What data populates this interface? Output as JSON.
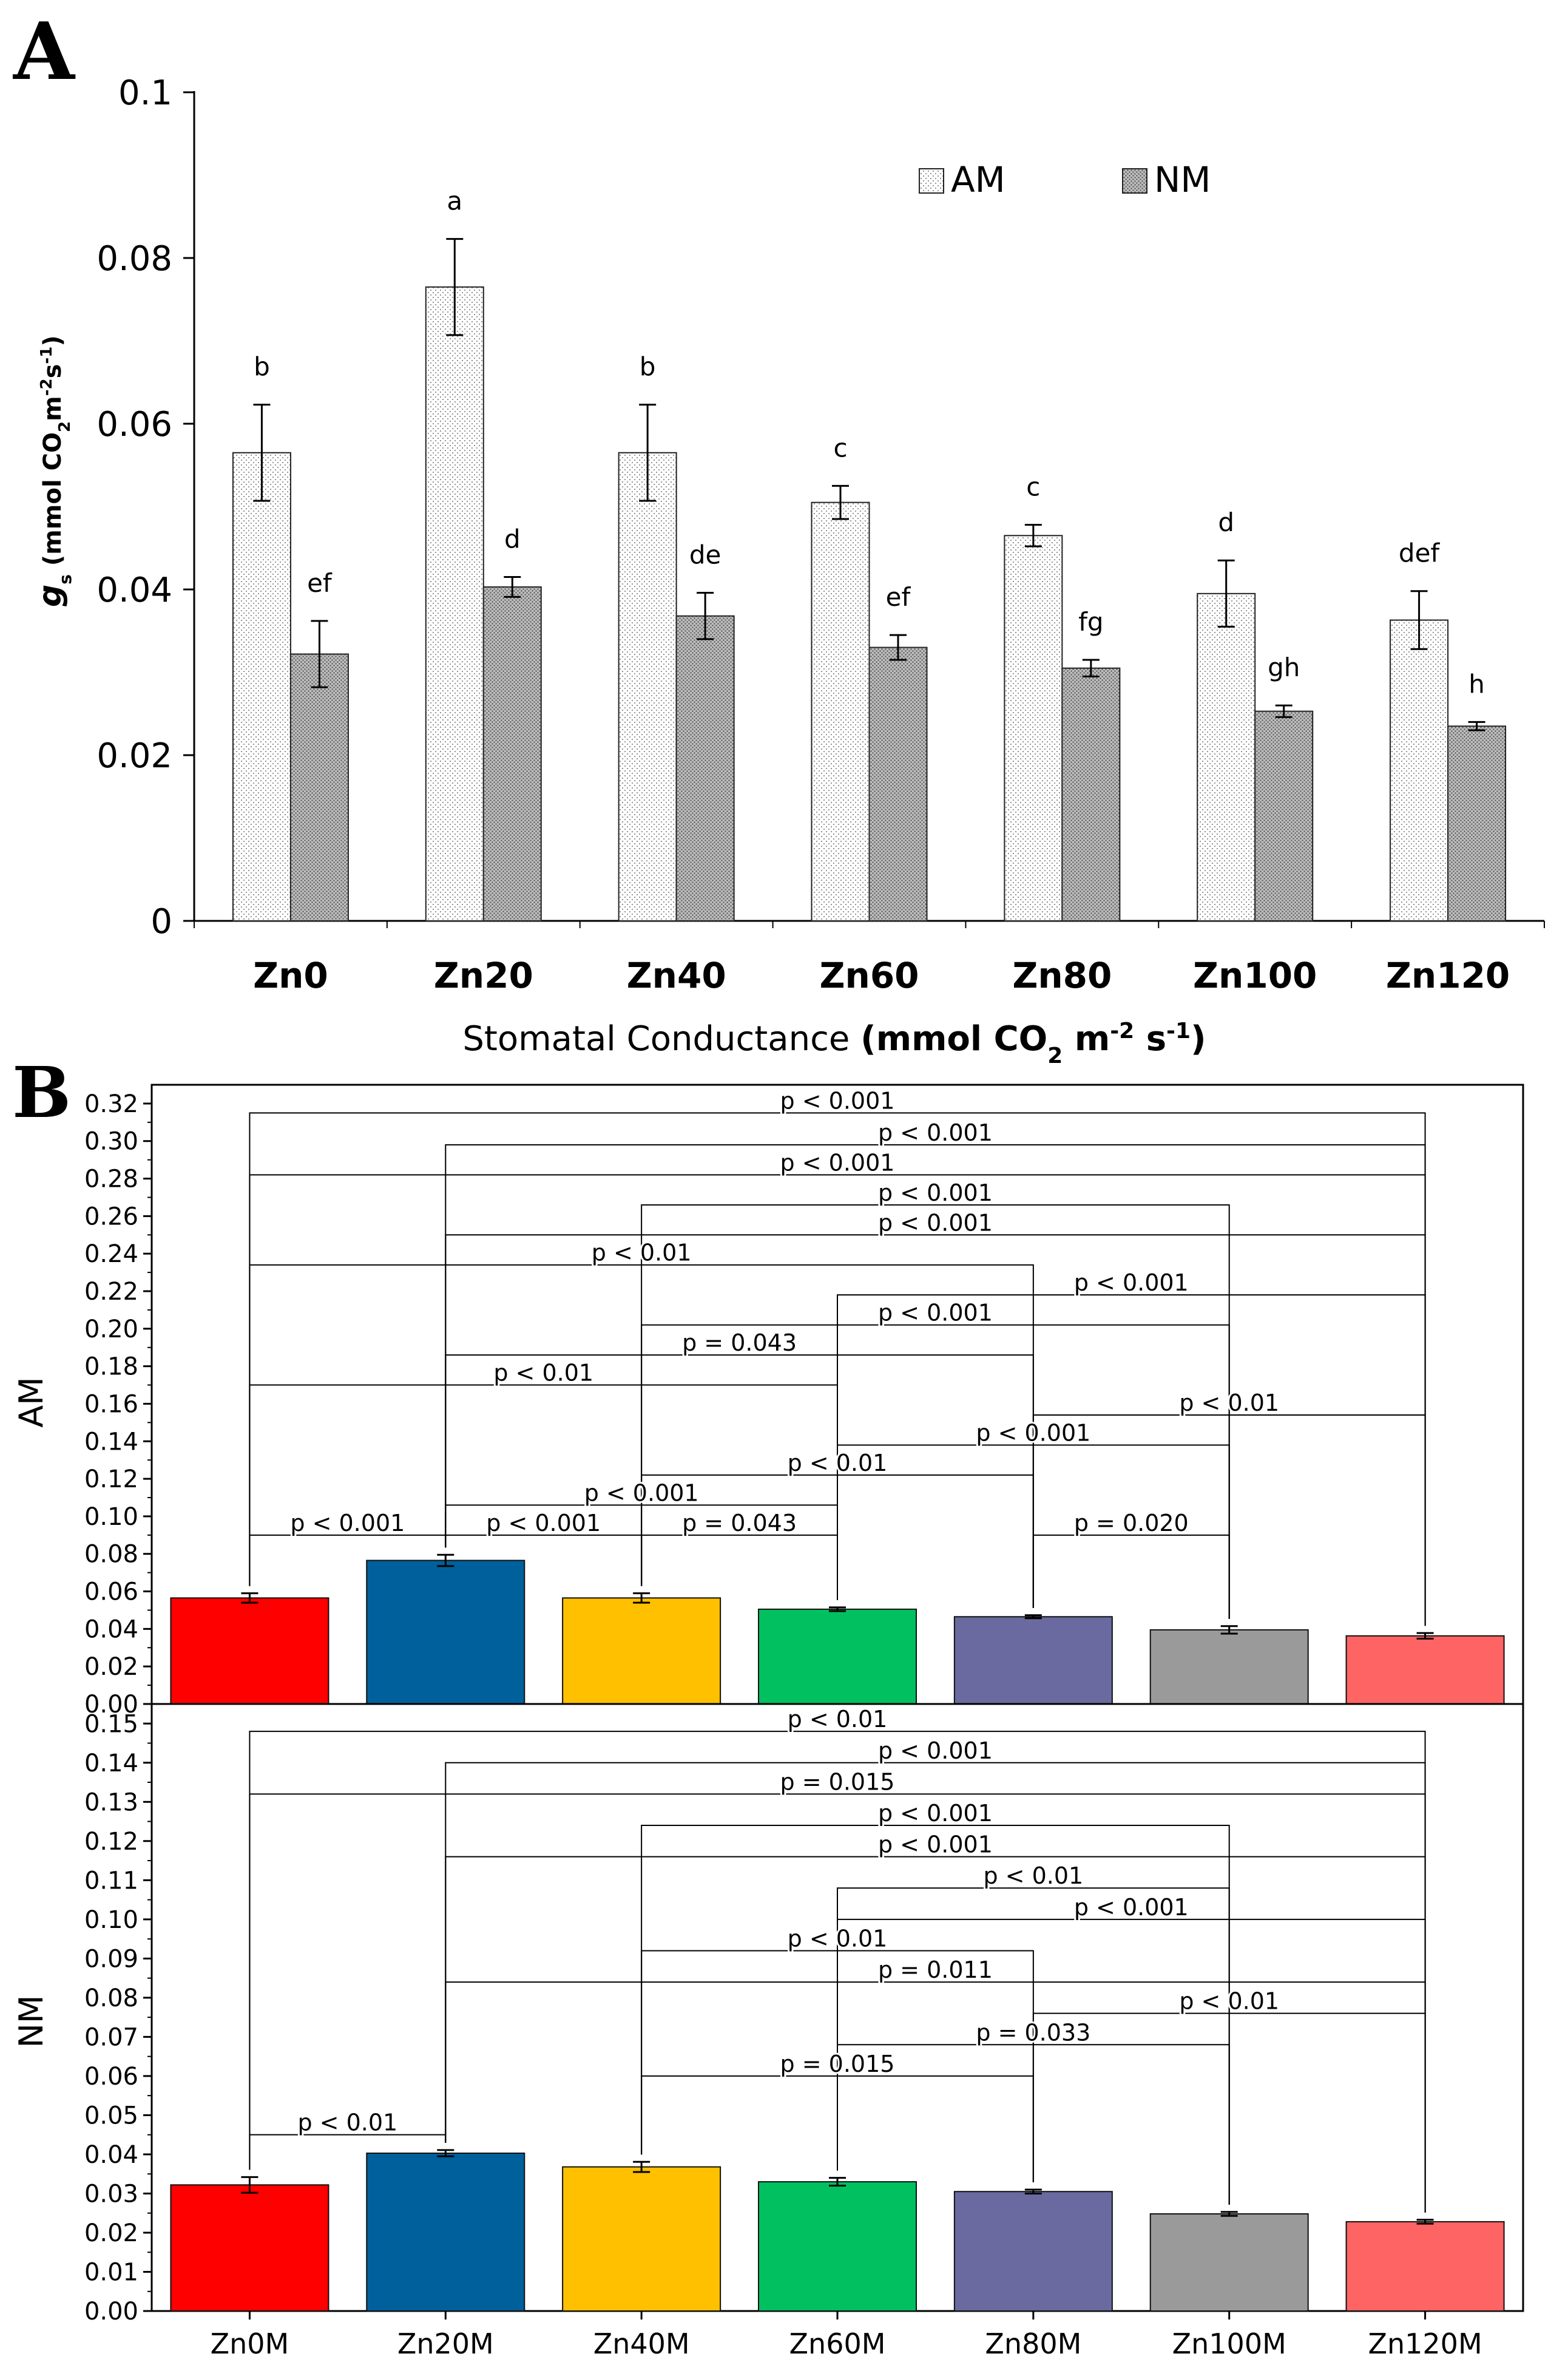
{
  "chart_data": [
    {
      "panel": "A",
      "type": "bar",
      "ylabel_main": "g",
      "ylabel_sub": "s",
      "ylabel_rest": " (mmol CO",
      "ylabel_sub2": "2",
      "ylabel_tail": "m",
      "ylabel_sup1": "-2",
      "ylabel_s": "s",
      "ylabel_sup2": "-1",
      "ylabel_close": ")",
      "xlabel_plain": "Stomatal Conductance ",
      "xlabel_bold": "(mmol CO",
      "xlabel_sub": "2",
      "xlabel_m": " m",
      "xlabel_sup1": "-2",
      "xlabel_s": " s",
      "xlabel_sup2": "-1",
      "xlabel_close": ")",
      "ylim": [
        0,
        0.1
      ],
      "yticks": [
        0,
        0.02,
        0.04,
        0.06,
        0.08,
        0.1
      ],
      "ytick_labels": [
        "0",
        "0.02",
        "0.04",
        "0.06",
        "0.08",
        "0.1"
      ],
      "categories": [
        "Zn0",
        "Zn20",
        "Zn40",
        "Zn60",
        "Zn80",
        "Zn100",
        "Zn120"
      ],
      "legend_position": "top-right",
      "series": [
        {
          "name": "AM",
          "values": [
            0.0565,
            0.0765,
            0.0565,
            0.0505,
            0.0465,
            0.0395,
            0.0363
          ],
          "errors": [
            0.0058,
            0.0058,
            0.0058,
            0.002,
            0.0013,
            0.004,
            0.0035
          ],
          "letters": [
            "b",
            "a",
            "b",
            "c",
            "c",
            "d",
            "def"
          ]
        },
        {
          "name": "NM",
          "values": [
            0.0322,
            0.0403,
            0.0368,
            0.033,
            0.0305,
            0.0253,
            0.0235
          ],
          "errors": [
            0.004,
            0.0012,
            0.0028,
            0.0015,
            0.001,
            0.0007,
            0.0005
          ],
          "letters": [
            "ef",
            "d",
            "de",
            "ef",
            "fg",
            "gh",
            "h"
          ]
        }
      ]
    },
    {
      "panel": "B",
      "type": "bar",
      "categories": [
        "Zn0M",
        "Zn20M",
        "Zn40M",
        "Zn60M",
        "Zn80M",
        "Zn100M",
        "Zn120M"
      ],
      "colors": [
        "#ff0000",
        "#00609c",
        "#ffc000",
        "#00c060",
        "#6a6aa0",
        "#9a9a9a",
        "#ff6464"
      ],
      "subplots": [
        {
          "ylabel": "AM",
          "ylim": [
            0,
            0.33
          ],
          "yticks": [
            0,
            0.02,
            0.04,
            0.06,
            0.08,
            0.1,
            0.12,
            0.14,
            0.16,
            0.18,
            0.2,
            0.22,
            0.24,
            0.26,
            0.28,
            0.3,
            0.32
          ],
          "ytick_labels": [
            "0.00",
            "0.02",
            "0.04",
            "0.06",
            "0.08",
            "0.10",
            "0.12",
            "0.14",
            "0.16",
            "0.18",
            "0.20",
            "0.22",
            "0.24",
            "0.26",
            "0.28",
            "0.30",
            "0.32"
          ],
          "values": [
            0.0565,
            0.0765,
            0.0565,
            0.0505,
            0.0465,
            0.0395,
            0.0363
          ],
          "errors": [
            0.0025,
            0.003,
            0.0025,
            0.001,
            0.0008,
            0.002,
            0.0015
          ],
          "comparisons": [
            {
              "a": 0,
              "b": 6,
              "y": 0.315,
              "label": "p < 0.001"
            },
            {
              "a": 1,
              "b": 6,
              "y": 0.298,
              "label": "p < 0.001"
            },
            {
              "a": 0,
              "b": 6,
              "y": 0.282,
              "label": "p < 0.001"
            },
            {
              "a": 2,
              "b": 5,
              "y": 0.266,
              "label": "p < 0.001"
            },
            {
              "a": 1,
              "b": 6,
              "y": 0.25,
              "label": "p < 0.001"
            },
            {
              "a": 0,
              "b": 4,
              "y": 0.234,
              "label": "p < 0.01"
            },
            {
              "a": 3,
              "b": 6,
              "y": 0.218,
              "label": "p < 0.001"
            },
            {
              "a": 2,
              "b": 5,
              "y": 0.202,
              "label": "p < 0.001"
            },
            {
              "a": 1,
              "b": 4,
              "y": 0.186,
              "label": "p = 0.043"
            },
            {
              "a": 0,
              "b": 3,
              "y": 0.17,
              "label": "p < 0.01"
            },
            {
              "a": 4,
              "b": 6,
              "y": 0.154,
              "label": "p < 0.01"
            },
            {
              "a": 3,
              "b": 5,
              "y": 0.138,
              "label": "p < 0.001"
            },
            {
              "a": 2,
              "b": 4,
              "y": 0.122,
              "label": "p < 0.01"
            },
            {
              "a": 1,
              "b": 3,
              "y": 0.106,
              "label": "p < 0.001"
            },
            {
              "a": 0,
              "b": 1,
              "y": 0.09,
              "label": "p < 0.001"
            },
            {
              "a": 1,
              "b": 2,
              "y": 0.09,
              "label": "p < 0.001"
            },
            {
              "a": 2,
              "b": 3,
              "y": 0.09,
              "label": "p = 0.043"
            },
            {
              "a": 4,
              "b": 5,
              "y": 0.09,
              "label": "p = 0.020"
            }
          ]
        },
        {
          "ylabel": "NM",
          "ylim": [
            0,
            0.155
          ],
          "yticks": [
            0,
            0.01,
            0.02,
            0.03,
            0.04,
            0.05,
            0.06,
            0.07,
            0.08,
            0.09,
            0.1,
            0.11,
            0.12,
            0.13,
            0.14,
            0.15
          ],
          "ytick_labels": [
            "0.00",
            "0.01",
            "0.02",
            "0.03",
            "0.04",
            "0.05",
            "0.06",
            "0.07",
            "0.08",
            "0.09",
            "0.10",
            "0.11",
            "0.12",
            "0.13",
            "0.14",
            "0.15"
          ],
          "values": [
            0.0322,
            0.0403,
            0.0368,
            0.033,
            0.0305,
            0.0248,
            0.0228
          ],
          "errors": [
            0.002,
            0.0008,
            0.0013,
            0.001,
            0.0005,
            0.0005,
            0.0005
          ],
          "comparisons": [
            {
              "a": 0,
              "b": 6,
              "y": 0.148,
              "label": "p < 0.01"
            },
            {
              "a": 1,
              "b": 6,
              "y": 0.14,
              "label": "p < 0.001"
            },
            {
              "a": 0,
              "b": 6,
              "y": 0.132,
              "label": "p = 0.015"
            },
            {
              "a": 2,
              "b": 5,
              "y": 0.124,
              "label": "p < 0.001"
            },
            {
              "a": 1,
              "b": 6,
              "y": 0.116,
              "label": "p < 0.001"
            },
            {
              "a": 3,
              "b": 5,
              "y": 0.108,
              "label": "p < 0.01"
            },
            {
              "a": 3,
              "b": 6,
              "y": 0.1,
              "label": "p < 0.001"
            },
            {
              "a": 2,
              "b": 4,
              "y": 0.092,
              "label": "p < 0.01"
            },
            {
              "a": 1,
              "b": 6,
              "y": 0.084,
              "label": "p = 0.011"
            },
            {
              "a": 4,
              "b": 6,
              "y": 0.076,
              "label": "p < 0.01"
            },
            {
              "a": 3,
              "b": 5,
              "y": 0.068,
              "label": "p = 0.033"
            },
            {
              "a": 2,
              "b": 4,
              "y": 0.06,
              "label": "p = 0.015"
            },
            {
              "a": 0,
              "b": 1,
              "y": 0.045,
              "label": "p < 0.01"
            }
          ]
        }
      ]
    }
  ]
}
